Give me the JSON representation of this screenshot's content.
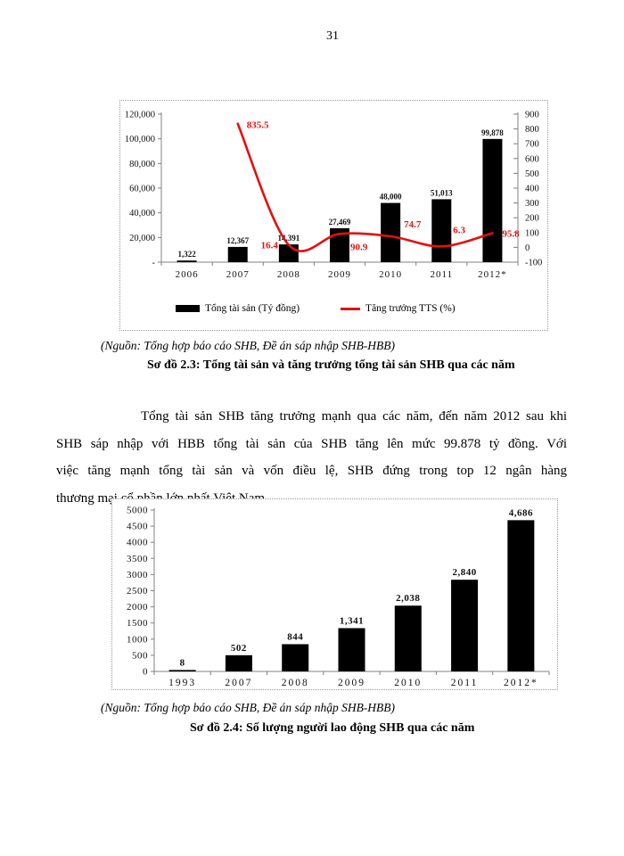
{
  "page": {
    "number": "31"
  },
  "figure1": {
    "source": "(Nguồn: Tổng hợp báo cáo SHB, Đề án sáp nhập SHB-HBB)",
    "title": "Sơ đồ 2.3: Tổng tài sản và tăng trưởng tổng tài sản SHB qua  các năm"
  },
  "figure2": {
    "source": "(Nguồn: Tổng hợp báo cáo SHB, Đề án sáp nhập SHB-HBB)",
    "title": "Sơ đồ 2.4: Số lượng người lao động SHB qua các năm"
  },
  "paragraph": {
    "lines": [
      "Tổng tài sản SHB tăng trưởng mạnh qua các năm, đến năm 2012 sau khi",
      "SHB sáp nhập với HBB tổng tài sản của SHB tăng lên mức 99.878 tỷ đồng. Với",
      "việc tăng mạnh tổng tài sản và vốn điều lệ, SHB đứng trong top 12 ngân hàng",
      "thương mại cổ phần lớn nhất Việt Nam."
    ]
  },
  "chart_data": [
    {
      "type": "combo-bar-line",
      "categories": [
        "2006",
        "2007",
        "2008",
        "2009",
        "2010",
        "2011",
        "2012*"
      ],
      "series": [
        {
          "name": "Tổng tài sản (Tỷ đồng)",
          "type": "bar",
          "color": "#000000",
          "values": [
            1322,
            12367,
            14391,
            27469,
            48000,
            51013,
            99878
          ],
          "labels": [
            "1,322",
            "12,367",
            "14,391",
            "27,469",
            "48,000",
            "51,013",
            "99,878"
          ]
        },
        {
          "name": "Tăng trưởng TTS (%)",
          "type": "line",
          "color": "#e60f0f",
          "values": [
            null,
            835.5,
            16.4,
            90.9,
            74.7,
            6.3,
            95.8
          ],
          "labels": [
            null,
            "835.5",
            "16.4",
            "90.9",
            "74.7",
            "6.3",
            "95.8"
          ]
        }
      ],
      "left_axis": {
        "min": 0,
        "max": 120000,
        "ticks": [
          "120,000",
          "100,000",
          "80,000",
          "60,000",
          "40,000",
          "20,000",
          "-"
        ]
      },
      "right_axis": {
        "min": -100,
        "max": 900,
        "ticks": [
          "900",
          "800",
          "700",
          "600",
          "500",
          "400",
          "300",
          "200",
          "100",
          "0",
          "-100"
        ]
      },
      "legend_position": "bottom",
      "grid": false
    },
    {
      "type": "bar",
      "categories": [
        "1993",
        "2007",
        "2008",
        "2009",
        "2010",
        "2011",
        "2012*"
      ],
      "values": [
        8,
        502,
        844,
        1341,
        2038,
        2840,
        4686
      ],
      "labels": [
        "8",
        "502",
        "844",
        "1,341",
        "2,038",
        "2,840",
        "4,686"
      ],
      "bar_color": "#000000",
      "ylim": [
        0,
        5000
      ],
      "yticks": [
        "5000",
        "4500",
        "4000",
        "3500",
        "3000",
        "2500",
        "2000",
        "1500",
        "1000",
        "500",
        "0"
      ],
      "grid": false
    }
  ]
}
